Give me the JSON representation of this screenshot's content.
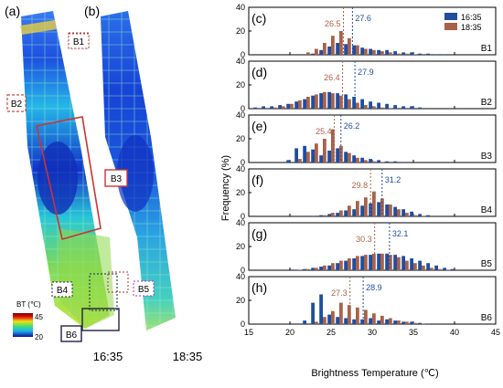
{
  "map_panel": {
    "panel_a_label": "(a)",
    "panel_b_label": "(b)",
    "time_a": "16:35",
    "time_b": "18:35",
    "regions": [
      "B1",
      "B2",
      "B3",
      "B4",
      "B5",
      "B6"
    ],
    "colorbar": {
      "title": "BT (℃)",
      "max_label": "45",
      "min_label": "20"
    }
  },
  "hist_panel": {
    "ylabel": "Frequency (%)",
    "xlabel": "Brightness Temperature (℃)",
    "xlim": [
      15,
      45
    ],
    "xticks": [
      "15",
      "20",
      "25",
      "30",
      "35",
      "40",
      "45"
    ],
    "ylim": [
      0,
      40
    ],
    "yticks": [
      "0",
      "20",
      "40"
    ],
    "legend": [
      {
        "name": "16:35",
        "color": "#1f4e9e"
      },
      {
        "name": "18:35",
        "color": "#a8624a"
      }
    ],
    "legend_position": "top-right of panel (c)"
  },
  "chart_data": {
    "type": "bar",
    "x_label": "Brightness Temperature (℃)",
    "y_label": "Frequency (%)",
    "xlim": [
      15,
      45
    ],
    "ylim": [
      0,
      40
    ],
    "subplots": [
      {
        "panel": "(c)",
        "region": "B1",
        "mean_1635": 27.6,
        "mean_1835": 26.5,
        "x": [
          19,
          20,
          21,
          22,
          23,
          24,
          25,
          26,
          27,
          28,
          29,
          30,
          31,
          32,
          33,
          34,
          35,
          36,
          37,
          38,
          39,
          40
        ],
        "series": [
          {
            "name": "16:35",
            "values": [
              0,
              0,
              0,
              0,
              1,
              4,
              7,
              10,
              9,
              8,
              6,
              5,
              4,
              4,
              3,
              2,
              2,
              1,
              1,
              0.5,
              0.5,
              0
            ]
          },
          {
            "name": "18:35",
            "values": [
              0,
              0,
              0,
              2,
              5,
              10,
              16,
              20,
              14,
              8,
              5,
              4,
              3,
              2,
              1,
              1,
              0.5,
              0,
              0,
              0,
              0,
              0
            ]
          }
        ]
      },
      {
        "panel": "(d)",
        "region": "B2",
        "mean_1635": 27.9,
        "mean_1835": 26.4,
        "x": [
          16,
          17,
          18,
          19,
          20,
          21,
          22,
          23,
          24,
          25,
          26,
          27,
          28,
          29,
          30,
          31,
          32,
          33,
          34,
          35,
          36,
          37
        ],
        "series": [
          {
            "name": "16:35",
            "values": [
              1,
              2,
              2,
              3,
              4,
              6,
              8,
              11,
              13,
              14,
              13,
              12,
              10,
              8,
              6,
              5,
              4,
              3,
              2,
              2,
              1,
              0
            ]
          },
          {
            "name": "18:35",
            "values": [
              0,
              0,
              1,
              2,
              4,
              7,
              10,
              12,
              14,
              13,
              11,
              8,
              5,
              3,
              2,
              1,
              0.5,
              0,
              0,
              0,
              0,
              0
            ]
          }
        ]
      },
      {
        "panel": "(e)",
        "region": "B3",
        "mean_1635": 26.2,
        "mean_1835": 25.4,
        "x": [
          20,
          21,
          22,
          23,
          24,
          25,
          26,
          27,
          28,
          29,
          30,
          31,
          32,
          33,
          34,
          35
        ],
        "series": [
          {
            "name": "16:35",
            "values": [
              2,
              12,
              14,
              11,
              6,
              10,
              12,
              9,
              6,
              4,
              3,
              2,
              1,
              1,
              0.5,
              0
            ]
          },
          {
            "name": "18:35",
            "values": [
              0,
              3,
              9,
              16,
              20,
              28,
              14,
              8,
              4,
              2,
              1,
              0.5,
              0,
              0,
              0,
              0
            ]
          }
        ]
      },
      {
        "panel": "(f)",
        "region": "B4",
        "mean_1635": 31.2,
        "mean_1835": 29.8,
        "x": [
          23,
          24,
          25,
          26,
          27,
          28,
          29,
          30,
          31,
          32,
          33,
          34,
          35,
          36,
          37
        ],
        "series": [
          {
            "name": "16:35",
            "values": [
              0.5,
              1,
              2,
              3,
              5,
              6,
              9,
              11,
              12,
              10,
              8,
              6,
              4,
              2,
              1
            ]
          },
          {
            "name": "18:35",
            "values": [
              0,
              1,
              3,
              5,
              9,
              13,
              16,
              21,
              15,
              10,
              6,
              3,
              1,
              0.5,
              0
            ]
          }
        ]
      },
      {
        "panel": "(g)",
        "region": "B5",
        "mean_1635": 32.1,
        "mean_1835": 30.3,
        "x": [
          21,
          22,
          23,
          24,
          25,
          26,
          27,
          28,
          29,
          30,
          31,
          32,
          33,
          34,
          35,
          36,
          37,
          38,
          39,
          40
        ],
        "series": [
          {
            "name": "16:35",
            "values": [
              0.5,
              1,
              2,
              3,
              4,
              6,
              8,
              10,
              12,
              13,
              14,
              14,
              13,
              12,
              10,
              8,
              6,
              4,
              2,
              1
            ]
          },
          {
            "name": "18:35",
            "values": [
              0.5,
              1,
              2,
              4,
              6,
              8,
              10,
              12,
              13,
              14,
              14,
              13,
              11,
              8,
              6,
              4,
              2,
              1,
              0.5,
              0
            ]
          }
        ]
      },
      {
        "panel": "(h)",
        "region": "B6",
        "mean_1635": 28.9,
        "mean_1835": 27.3,
        "x": [
          22,
          23,
          24,
          25,
          26,
          27,
          28,
          29,
          30,
          31,
          32,
          33,
          34,
          35,
          36,
          37
        ],
        "series": [
          {
            "name": "16:35",
            "values": [
              3,
              18,
              25,
              8,
              6,
              5,
              4,
              4,
              5,
              3,
              4,
              3,
              2,
              2,
              1,
              0.5
            ]
          },
          {
            "name": "18:35",
            "values": [
              0,
              2,
              6,
              11,
              18,
              16,
              14,
              12,
              9,
              7,
              5,
              3,
              2,
              1,
              0.5,
              0
            ]
          }
        ]
      }
    ]
  }
}
